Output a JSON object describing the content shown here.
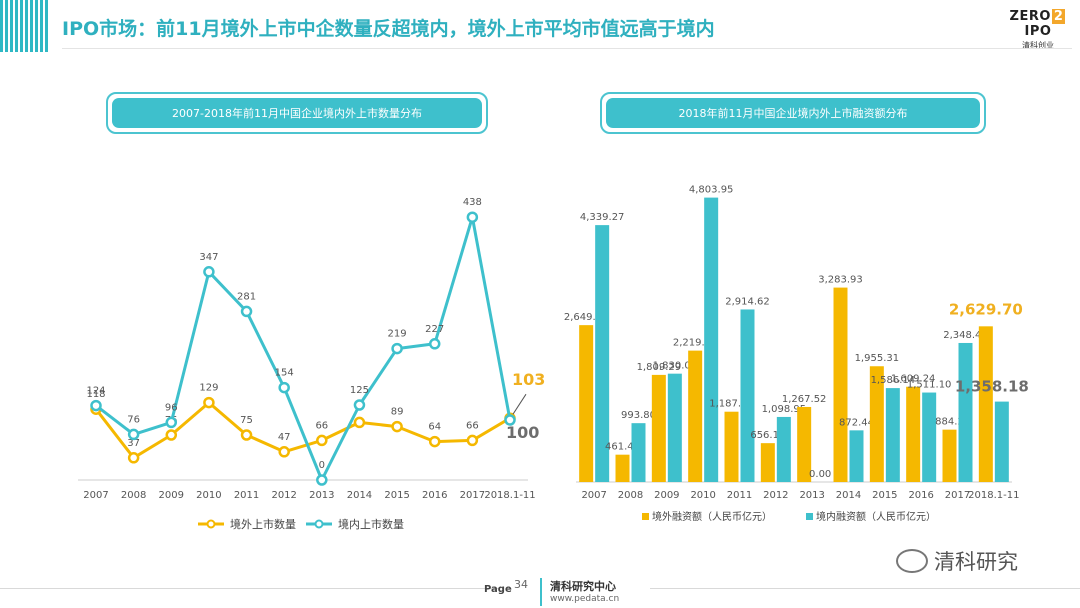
{
  "header": {
    "title": "IPO市场：前11月境外上市中企数量反超境内，境外上市平均市值远高于境内",
    "logo_text": "ZERO2IPO",
    "logo_sub": "清科创业"
  },
  "colors": {
    "teal": "#3ec0cc",
    "yellow": "#f5b800",
    "highlight_yellow": "#f0b020",
    "highlight_gray": "#6d6d6d"
  },
  "chart_data": [
    {
      "type": "line",
      "title": "2007-2018年前11月中国企业境内外上市数量分布",
      "categories": [
        "2007",
        "2008",
        "2009",
        "2010",
        "2011",
        "2012",
        "2013",
        "2014",
        "2015",
        "2016",
        "2017",
        "2018.1-11"
      ],
      "series": [
        {
          "name": "境外上市数量",
          "color": "#f5b800",
          "values": [
            118,
            37,
            75,
            129,
            75,
            47,
            66,
            96,
            89,
            64,
            66,
            103
          ]
        },
        {
          "name": "境内上市数量",
          "color": "#3ec0cc",
          "values": [
            124,
            76,
            96,
            347,
            281,
            154,
            0,
            125,
            219,
            227,
            438,
            100
          ]
        }
      ],
      "labels": {
        "overseas": [
          "118",
          "37",
          "75",
          "129",
          "75",
          "47",
          "66",
          "",
          "89",
          "64",
          "66",
          ""
        ],
        "domestic": [
          "124",
          "76",
          "96",
          "347",
          "281",
          "154",
          "0",
          "125",
          "219",
          "227",
          "438",
          ""
        ]
      },
      "highlight": {
        "overseas": "103",
        "domestic": "100"
      },
      "ylim": [
        0,
        500
      ]
    },
    {
      "type": "bar",
      "title": "2018年前11月中国企业境内外上市融资额分布",
      "categories": [
        "2007",
        "2008",
        "2009",
        "2010",
        "2011",
        "2012",
        "2013",
        "2014",
        "2015",
        "2016",
        "2017",
        "2018.1-11"
      ],
      "series": [
        {
          "name": "境外融资额（人民币亿元）",
          "color": "#f5b800",
          "values": [
            2649.65,
            461.49,
            1809.29,
            2219.25,
            1187.53,
            656.16,
            1267.52,
            3283.93,
            1955.31,
            1609.24,
            884.2,
            2629.7
          ]
        },
        {
          "name": "境内融资额（人民币亿元）",
          "color": "#3ec0cc",
          "values": [
            4339.27,
            993.8,
            1830.0,
            4803.95,
            2914.62,
            1098.95,
            0.0,
            872.44,
            1586.14,
            1511.1,
            2348.49,
            1358.18
          ]
        }
      ],
      "labels": {
        "overseas": [
          "2,649.65",
          "461.49",
          "1,809.29",
          "2,219.25",
          "1,187.53",
          "656.16",
          "1,267.52",
          "3,283.93",
          "1,955.31",
          "1,609.24",
          "884.2",
          ""
        ],
        "domestic": [
          "4,339.27",
          "993.80",
          "1,830.00",
          "4,803.95",
          "2,914.62",
          "1,098.95",
          "0.00",
          "872.44",
          "1,586.14",
          "1,511.10",
          "2,348.49",
          ""
        ]
      },
      "highlight": {
        "overseas": "2,629.70",
        "domestic": "1,358.18"
      },
      "ylim": [
        0,
        5000
      ]
    }
  ],
  "footer": {
    "page_label": "Page",
    "page_number": "34",
    "org": "清科研究中心",
    "url": "www.pedata.cn"
  },
  "watermark": {
    "text": "清科研究"
  }
}
